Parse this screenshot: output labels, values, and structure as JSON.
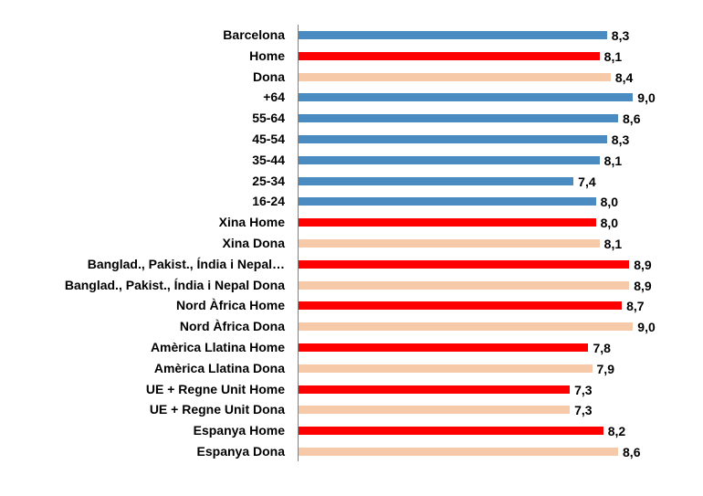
{
  "chart_data": {
    "type": "bar",
    "orientation": "horizontal",
    "title": "",
    "xlabel": "",
    "ylabel": "",
    "xlim": [
      0,
      10
    ],
    "grid": false,
    "legend": null,
    "categories": [
      "Barcelona",
      "Home",
      "Dona",
      "+64",
      "55-64",
      "45-54",
      "35-44",
      "25-34",
      "16-24",
      "Xina Home",
      "Xina Dona",
      "Banglad., Pakist., Índia i Nepal…",
      "Banglad., Pakist., Índia i Nepal Dona",
      "Nord Àfrica Home",
      "Nord Àfrica Dona",
      "Amèrica Llatina Home",
      "Amèrica Llatina Dona",
      "UE + Regne Unit Home",
      "UE + Regne Unit Dona",
      "Espanya Home",
      "Espanya Dona"
    ],
    "values": [
      8.3,
      8.1,
      8.4,
      9.0,
      8.6,
      8.3,
      8.1,
      7.4,
      8.0,
      8.0,
      8.1,
      8.9,
      8.9,
      8.7,
      9.0,
      7.8,
      7.9,
      7.3,
      7.3,
      8.2,
      8.6
    ],
    "value_labels": [
      "8,3",
      "8,1",
      "8,4",
      "9,0",
      "8,6",
      "8,3",
      "8,1",
      "7,4",
      "8,0",
      "8,0",
      "8,1",
      "8,9",
      "8,9",
      "8,7",
      "9,0",
      "7,8",
      "7,9",
      "7,3",
      "7,3",
      "8,2",
      "8,6"
    ],
    "bar_colors": [
      "#4a8bc2",
      "#ff0000",
      "#f6c9a8",
      "#4a8bc2",
      "#4a8bc2",
      "#4a8bc2",
      "#4a8bc2",
      "#4a8bc2",
      "#4a8bc2",
      "#ff0000",
      "#f6c9a8",
      "#ff0000",
      "#f6c9a8",
      "#ff0000",
      "#f6c9a8",
      "#ff0000",
      "#f6c9a8",
      "#ff0000",
      "#f6c9a8",
      "#ff0000",
      "#f6c9a8"
    ],
    "palette": {
      "total_and_age": "#4a8bc2",
      "home": "#ff0000",
      "dona": "#f6c9a8"
    }
  }
}
